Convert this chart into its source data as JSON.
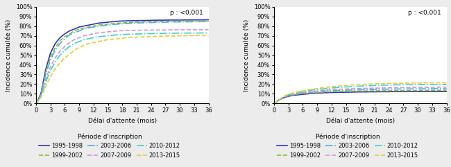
{
  "pvalue": "p : <0,001",
  "xlabel": "Délai d'attente (mois)",
  "ylabel": "Incidence cumulée (%)",
  "legend_title": "Période d'inscription",
  "legend_entries": [
    "1995-1998",
    "1999-2002",
    "2003-2006",
    "2007-2009",
    "2010-2012",
    "2013-2015"
  ],
  "line_colors": [
    "#3333aa",
    "#88bb33",
    "#55aadd",
    "#cc99cc",
    "#44cccc",
    "#ddcc44"
  ],
  "line_styles": [
    "-",
    "--",
    "-.",
    "--",
    "-.",
    "--"
  ],
  "line_widths": [
    1.2,
    1.2,
    1.2,
    1.2,
    1.2,
    1.2
  ],
  "xticks": [
    0,
    3,
    6,
    9,
    12,
    15,
    18,
    21,
    24,
    27,
    30,
    33,
    36
  ],
  "yticks": [
    0,
    10,
    20,
    30,
    40,
    50,
    60,
    70,
    80,
    90,
    100
  ],
  "series_left": {
    "1995-1998": [
      0,
      10,
      35,
      52,
      62,
      68,
      72,
      75,
      77,
      79,
      80,
      81,
      82,
      83,
      83.5,
      84,
      84.5,
      85,
      85.2,
      85.4,
      85.5,
      85.6,
      85.7,
      85.8,
      85.9,
      86.0,
      86.1,
      86.1,
      86.2,
      86.2,
      86.2,
      86.3,
      86.3,
      86.3,
      86.4,
      86.4,
      86.5
    ],
    "1999-2002": [
      0,
      9,
      32,
      48,
      58,
      65,
      69,
      72,
      75,
      77,
      78,
      79,
      80,
      81,
      81.5,
      82,
      82.5,
      83,
      83.2,
      83.5,
      83.8,
      84,
      84.2,
      84.4,
      84.5,
      84.6,
      84.7,
      84.8,
      84.9,
      85.0,
      85.0,
      85.1,
      85.1,
      85.2,
      85.2,
      85.2,
      85.3
    ],
    "2003-2006": [
      0,
      9,
      30,
      45,
      55,
      62,
      67,
      71,
      73,
      75,
      77,
      78,
      79,
      80,
      80.5,
      81,
      81.5,
      82,
      82.3,
      82.6,
      82.9,
      83.1,
      83.3,
      83.5,
      83.6,
      83.8,
      83.9,
      84.0,
      84.1,
      84.2,
      84.3,
      84.4,
      84.4,
      84.5,
      84.5,
      84.6,
      84.6
    ],
    "2007-2009": [
      0,
      8,
      25,
      38,
      47,
      54,
      59,
      63,
      66,
      68,
      70,
      71,
      72,
      73,
      73.5,
      74,
      74.5,
      75,
      75.2,
      75.4,
      75.5,
      75.6,
      75.7,
      75.8,
      75.8,
      75.9,
      75.9,
      76.0,
      76.0,
      76.1,
      76.1,
      76.1,
      76.2,
      76.2,
      76.2,
      76.2,
      76.2
    ],
    "2010-2012": [
      0,
      7,
      22,
      34,
      43,
      50,
      55,
      59,
      62,
      64,
      66,
      67,
      68,
      69,
      69.5,
      70,
      70.5,
      71,
      71.3,
      71.5,
      71.7,
      71.8,
      72.0,
      72.1,
      72.2,
      72.3,
      72.4,
      72.5,
      72.6,
      72.6,
      72.7,
      72.7,
      72.8,
      72.8,
      72.8,
      72.9,
      72.9
    ],
    "2013-2015": [
      0,
      6,
      18,
      28,
      36,
      42,
      47,
      51,
      55,
      58,
      60,
      62,
      63,
      64,
      65,
      66,
      66.5,
      67,
      67.5,
      68,
      68.3,
      68.6,
      68.8,
      69.0,
      69.2,
      69.3,
      69.5,
      69.6,
      69.7,
      69.8,
      69.9,
      70.0,
      70.1,
      70.1,
      70.2,
      70.2,
      70.2
    ]
  },
  "series_right": {
    "1995-1998": [
      0,
      3.5,
      6,
      7.5,
      8.5,
      9,
      9.5,
      10,
      10.5,
      10.8,
      11,
      11.2,
      11.4,
      11.5,
      11.6,
      11.7,
      11.8,
      11.9,
      12.0,
      12.0,
      12.1,
      12.1,
      12.2,
      12.2,
      12.2,
      12.3,
      12.3,
      12.3,
      12.3,
      12.4,
      12.4,
      12.4,
      12.4,
      12.4,
      12.4,
      12.4,
      12.4
    ],
    "1999-2002": [
      0,
      3.5,
      6.5,
      8,
      9,
      9.8,
      10.3,
      10.8,
      11.2,
      11.5,
      11.8,
      12,
      12.2,
      12.4,
      12.5,
      12.6,
      12.7,
      12.8,
      12.9,
      13.0,
      13.0,
      13.1,
      13.2,
      13.2,
      13.3,
      13.3,
      13.4,
      13.4,
      13.5,
      13.5,
      13.5,
      13.6,
      13.6,
      13.6,
      13.7,
      13.7,
      13.7
    ],
    "2003-2006": [
      0,
      3.5,
      6.5,
      8.5,
      9.5,
      10.5,
      11,
      11.5,
      12,
      12.4,
      12.7,
      13.0,
      13.3,
      13.5,
      13.7,
      13.9,
      14.0,
      14.2,
      14.3,
      14.4,
      14.5,
      14.6,
      14.7,
      14.8,
      14.9,
      15.0,
      15.0,
      15.1,
      15.1,
      15.2,
      15.2,
      15.2,
      15.3,
      15.3,
      15.3,
      15.4,
      15.4
    ],
    "2007-2009": [
      0,
      3.5,
      6.5,
      8.5,
      9.8,
      10.8,
      11.5,
      12,
      12.5,
      13,
      13.5,
      14,
      14.3,
      14.6,
      14.8,
      15.0,
      15.2,
      15.4,
      15.5,
      15.7,
      15.8,
      15.9,
      16.0,
      16.1,
      16.2,
      16.3,
      16.4,
      16.5,
      16.5,
      16.6,
      16.6,
      16.7,
      16.7,
      16.8,
      16.8,
      16.8,
      16.8
    ],
    "2010-2012": [
      0,
      4,
      7,
      9,
      10.5,
      11.5,
      12.5,
      13.2,
      14,
      14.5,
      15,
      15.5,
      16,
      16.4,
      16.8,
      17.1,
      17.4,
      17.7,
      18.0,
      18.2,
      18.4,
      18.6,
      18.8,
      19.0,
      19.1,
      19.2,
      19.3,
      19.4,
      19.5,
      19.5,
      19.6,
      19.6,
      19.7,
      19.7,
      19.7,
      19.8,
      19.8
    ],
    "2013-2015": [
      0,
      4,
      7.5,
      9.5,
      11,
      12,
      13,
      14,
      14.8,
      15.5,
      16.2,
      16.8,
      17.3,
      17.8,
      18.2,
      18.6,
      19.0,
      19.3,
      19.6,
      19.9,
      20.1,
      20.3,
      20.5,
      20.6,
      20.7,
      20.8,
      20.9,
      21.0,
      21.1,
      21.2,
      21.2,
      21.3,
      21.3,
      21.4,
      21.4,
      21.4,
      21.4
    ]
  },
  "bg_color": "#ececec"
}
